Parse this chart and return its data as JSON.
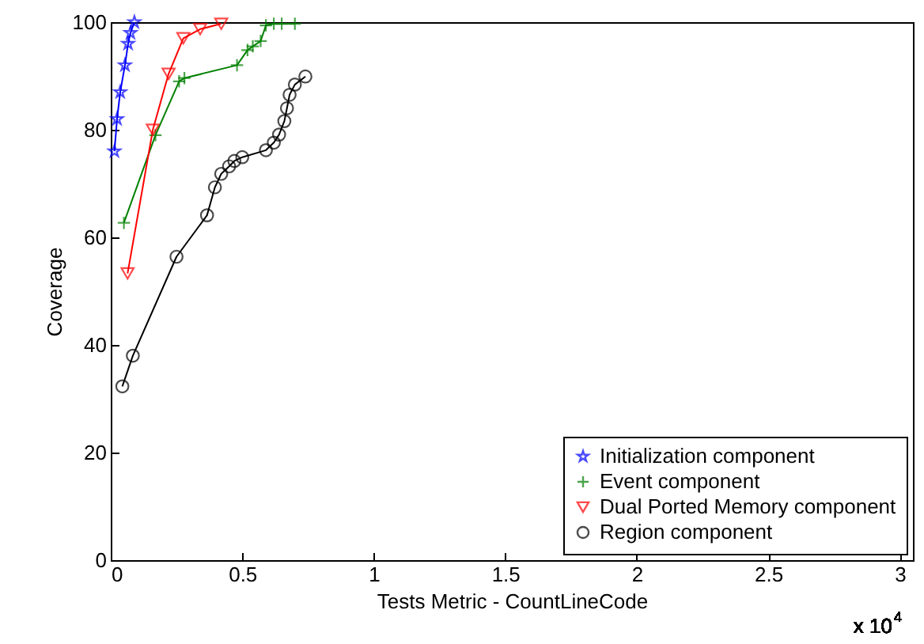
{
  "chart_data": {
    "type": "line",
    "xlabel": "Tests Metric - CountLineCode",
    "ylabel": "Coverage",
    "annotations": [
      "x 10$^{4}$"
    ],
    "xlim": [
      0,
      3.05
    ],
    "xticks": [
      0,
      0.5,
      1,
      1.5,
      2,
      2.5,
      3
    ],
    "ylim": [
      0,
      100
    ],
    "yticks": [
      0,
      20,
      40,
      60,
      80,
      100
    ],
    "grid": false,
    "legend": "bottom right",
    "line_style": "solid",
    "series": [
      {
        "name": "Initialization component",
        "color": "#0000ff",
        "marker": "star",
        "x": [
          0.014,
          0.024,
          0.036,
          0.054,
          0.066,
          0.075,
          0.09
        ],
        "values": [
          76,
          82,
          87,
          92,
          96,
          98,
          100
        ]
      },
      {
        "name": "Event component",
        "color": "#008000",
        "marker": "cross",
        "x": [
          0.05,
          0.17,
          0.26,
          0.28,
          0.48,
          0.52,
          0.54,
          0.57,
          0.59,
          0.62,
          0.65,
          0.7
        ],
        "values": [
          62.7,
          79,
          89,
          89.6,
          92,
          94.8,
          95.5,
          96.5,
          99.4,
          99.7,
          99.7,
          99.7
        ]
      },
      {
        "name": "Dual Ported Memory component",
        "color": "#ff0000",
        "marker": "triangle",
        "x": [
          0.064,
          0.16,
          0.22,
          0.276,
          0.34,
          0.42
        ],
        "values": [
          53.3,
          80,
          90.4,
          97,
          98.7,
          99.7
        ]
      },
      {
        "name": "Region component",
        "color": "#000000",
        "marker": "circle",
        "x": [
          0.044,
          0.084,
          0.25,
          0.366,
          0.396,
          0.42,
          0.45,
          0.47,
          0.5,
          0.59,
          0.62,
          0.64,
          0.66,
          0.67,
          0.68,
          0.7,
          0.74
        ],
        "values": [
          32.3,
          38,
          56.4,
          64.1,
          69.3,
          71.8,
          73.2,
          74.2,
          74.9,
          76.2,
          77.6,
          79.1,
          81.6,
          84,
          86.5,
          88.4,
          89.9
        ]
      }
    ]
  }
}
